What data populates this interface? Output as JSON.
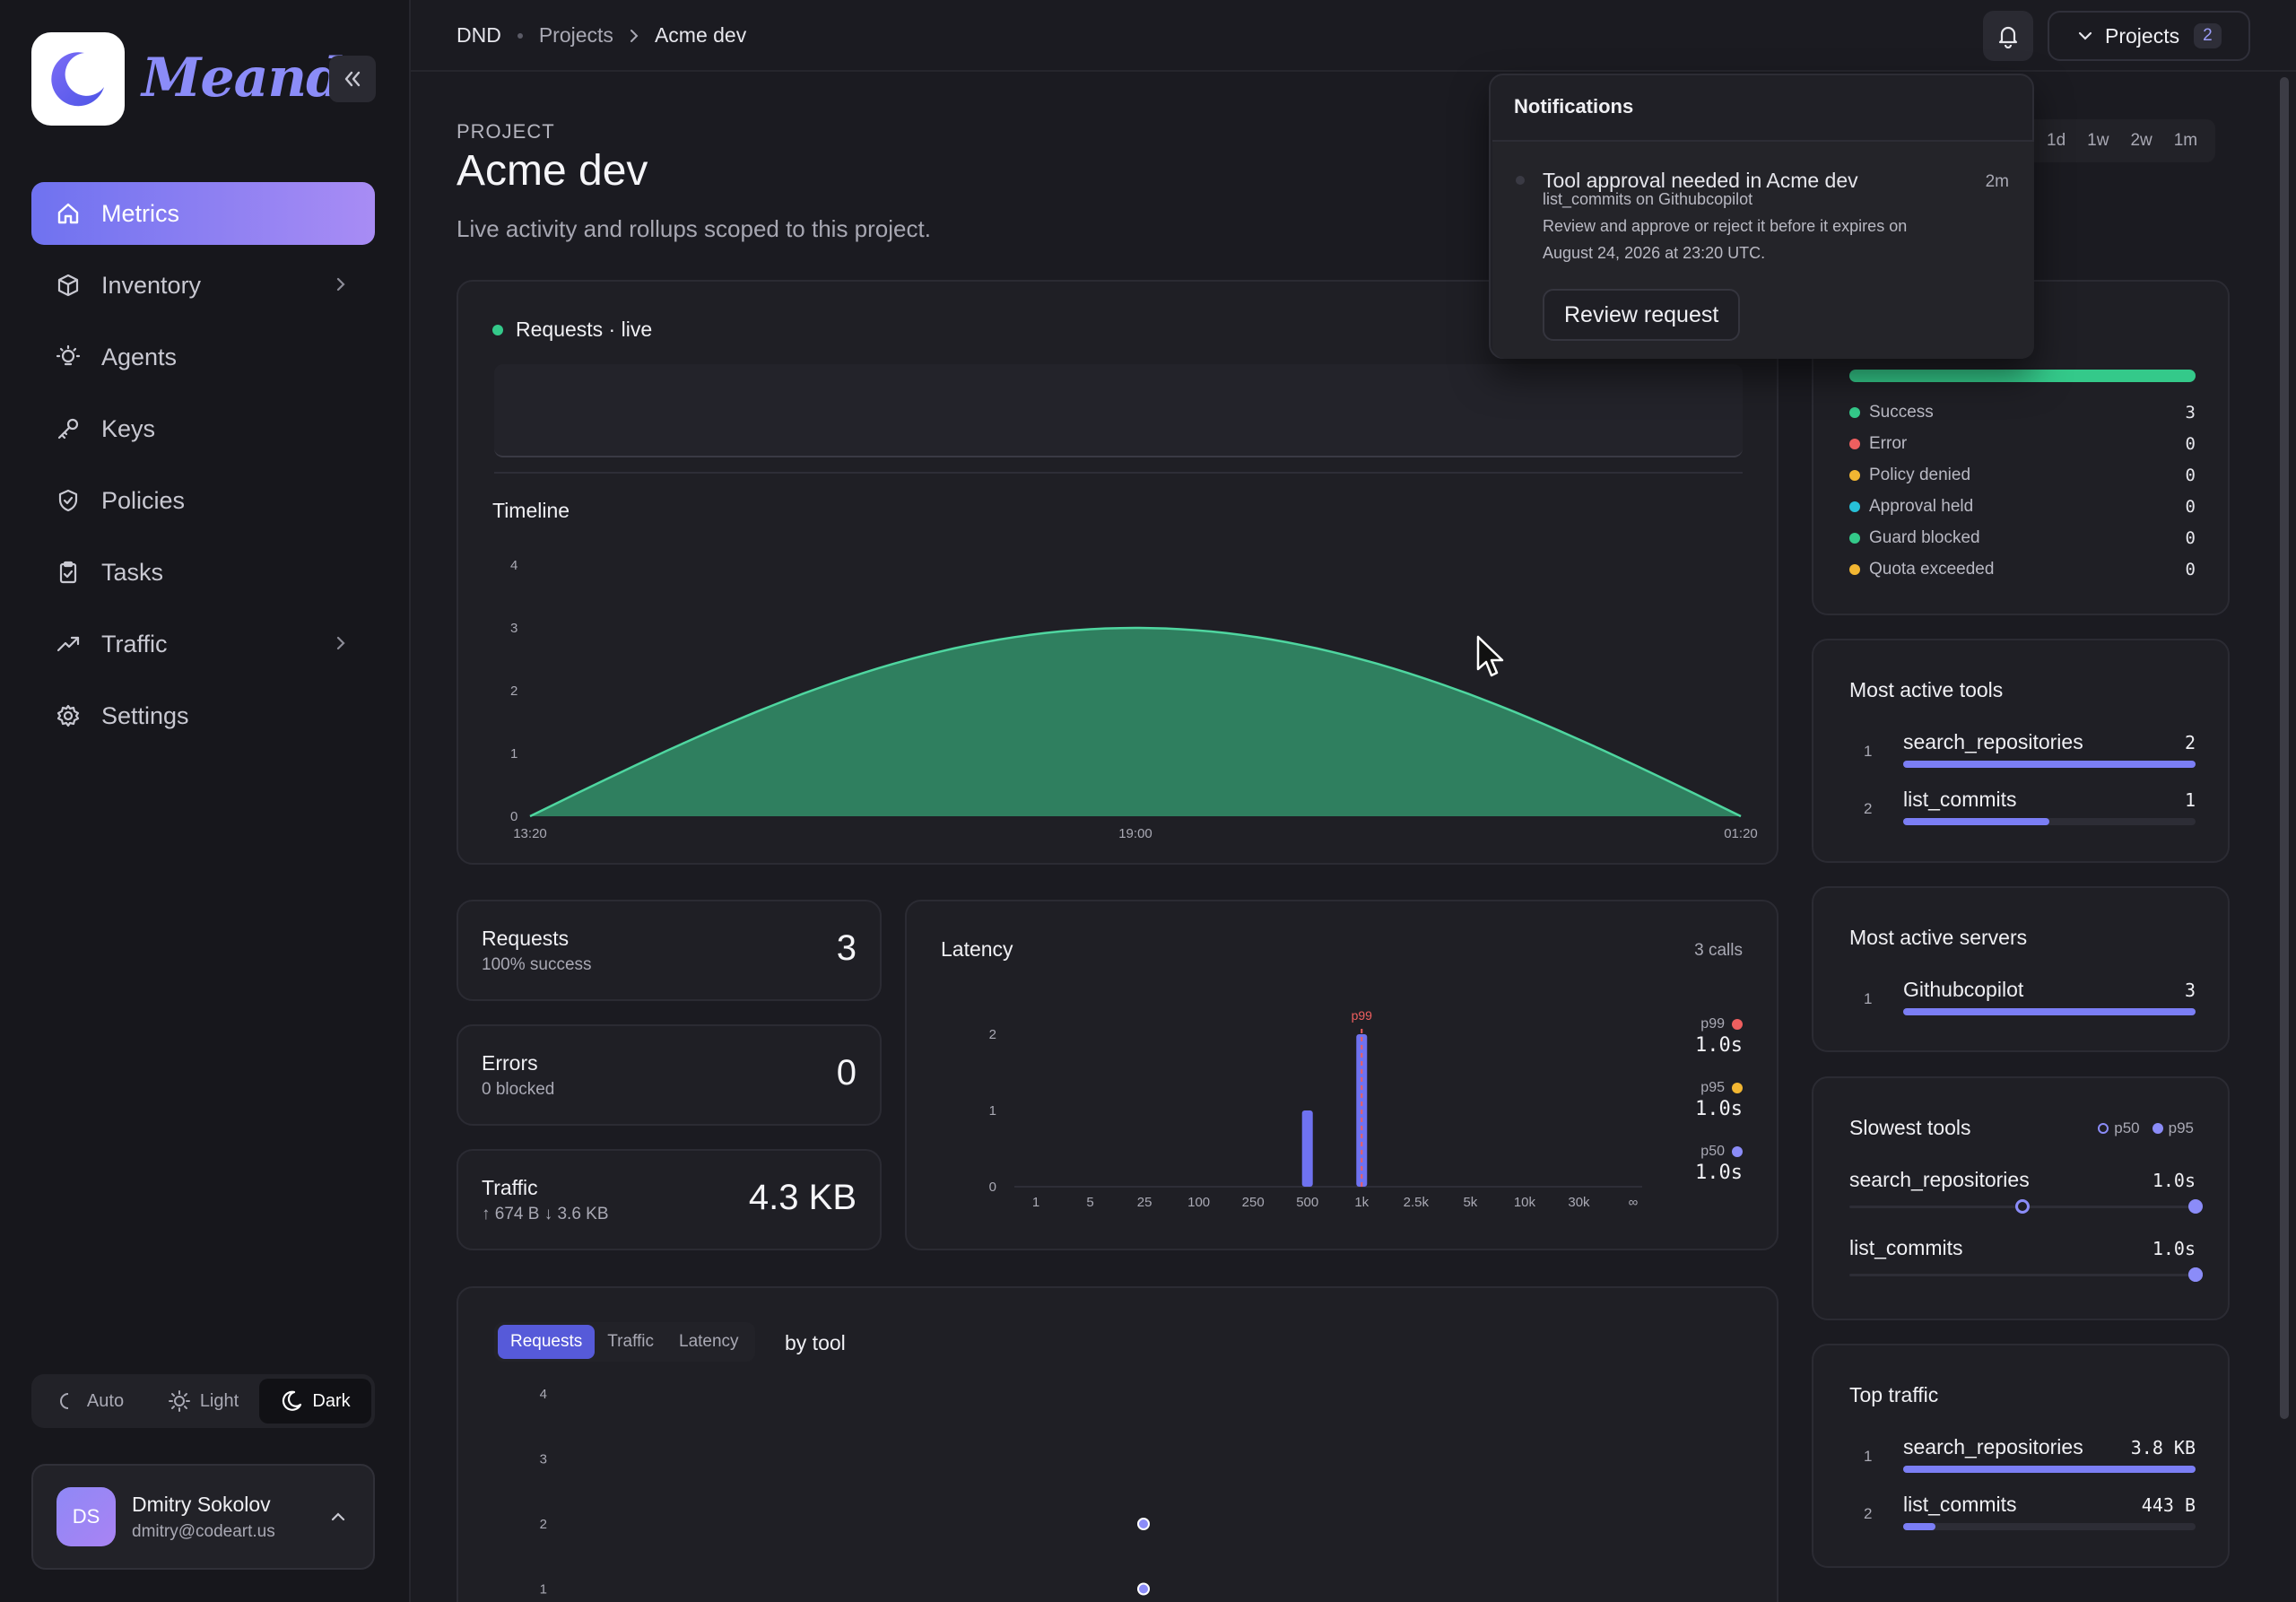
{
  "brand": "Meandr",
  "nav": [
    {
      "label": "Metrics"
    },
    {
      "label": "Inventory"
    },
    {
      "label": "Agents"
    },
    {
      "label": "Keys"
    },
    {
      "label": "Policies"
    },
    {
      "label": "Tasks"
    },
    {
      "label": "Traffic"
    },
    {
      "label": "Settings"
    }
  ],
  "theme": {
    "auto": "Auto",
    "light": "Light",
    "dark": "Dark",
    "selected": "Dark"
  },
  "user": {
    "initials": "DS",
    "name": "Dmitry Sokolov",
    "email": "dmitry@codeart.us"
  },
  "breadcrumb": {
    "root": "DND",
    "section": "Projects",
    "current": "Acme dev"
  },
  "projects_button": {
    "label": "Projects",
    "count": "2"
  },
  "page": {
    "eyebrow": "PROJECT",
    "title": "Acme dev",
    "subtitle": "Live activity and rollups scoped to this project."
  },
  "range_tabs": [
    "1d",
    "1w",
    "2w",
    "1m"
  ],
  "notifications": {
    "heading": "Notifications",
    "item": {
      "title": "Tool approval needed in Acme dev",
      "time": "2m",
      "line1": "list_commits on Githubcopilot",
      "line2": "Review and approve or reject it before it expires on",
      "line3": "August 24, 2026 at 23:20 UTC.",
      "action": "Review request"
    }
  },
  "live_card": {
    "title": "Requests · live"
  },
  "timeline": {
    "title": "Timeline",
    "chart_data": {
      "type": "area",
      "x": [
        "13:20",
        "19:00",
        "01:20"
      ],
      "y_ticks": [
        0,
        1,
        2,
        3,
        4
      ],
      "ylim": [
        0,
        4
      ],
      "series": [
        {
          "values": [
            0,
            3,
            0
          ]
        }
      ],
      "color": "#2f7f5f"
    }
  },
  "outcomes": {
    "rows": [
      {
        "label": "Success",
        "value": "3",
        "color": "#34c98a"
      },
      {
        "label": "Error",
        "value": "0",
        "color": "#ef5f5f"
      },
      {
        "label": "Policy denied",
        "value": "0",
        "color": "#f2b632"
      },
      {
        "label": "Approval held",
        "value": "0",
        "color": "#27c0d8"
      },
      {
        "label": "Guard blocked",
        "value": "0",
        "color": "#34c98a"
      },
      {
        "label": "Quota exceeded",
        "value": "0",
        "color": "#f2b632"
      }
    ],
    "success_fraction": 1.0
  },
  "most_active_tools": {
    "title": "Most active tools",
    "items": [
      {
        "rank": "1",
        "name": "search_repositories",
        "count": "2",
        "fraction": 1.0
      },
      {
        "rank": "2",
        "name": "list_commits",
        "count": "1",
        "fraction": 0.5
      }
    ]
  },
  "most_active_servers": {
    "title": "Most active servers",
    "items": [
      {
        "rank": "1",
        "name": "Githubcopilot",
        "count": "3",
        "fraction": 1.0
      }
    ]
  },
  "slowest_tools": {
    "title": "Slowest tools",
    "legend_p50": "p50",
    "legend_p95": "p95",
    "items": [
      {
        "name": "search_repositories",
        "value": "1.0s",
        "p50_fraction": 0.5,
        "p95_fraction": 1.0
      },
      {
        "name": "list_commits",
        "value": "1.0s",
        "p50_fraction": 1.0,
        "p95_fraction": 1.0
      }
    ]
  },
  "top_traffic": {
    "title": "Top traffic",
    "items": [
      {
        "rank": "1",
        "name": "search_repositories",
        "value": "3.8 KB",
        "fraction": 1.0
      },
      {
        "rank": "2",
        "name": "list_commits",
        "value": "443 B",
        "fraction": 0.11
      }
    ]
  },
  "stats": {
    "requests": {
      "label": "Requests",
      "sub": "100% success",
      "value": "3"
    },
    "errors": {
      "label": "Errors",
      "sub": "0 blocked",
      "value": "0"
    },
    "traffic": {
      "label": "Traffic",
      "sub": "↑ 674 B ↓ 3.6 KB",
      "value": "4.3 KB"
    }
  },
  "latency": {
    "title": "Latency",
    "calls": "3 calls",
    "marker": "p99",
    "percentiles": [
      {
        "label": "p99",
        "value": "1.0s",
        "color": "#ef5f5f"
      },
      {
        "label": "p95",
        "value": "1.0s",
        "color": "#f2b632"
      },
      {
        "label": "p50",
        "value": "1.0s",
        "color": "#8b8cf8"
      }
    ],
    "chart_data": {
      "type": "bar",
      "categories": [
        "1",
        "5",
        "25",
        "100",
        "250",
        "500",
        "1k",
        "2.5k",
        "5k",
        "10k",
        "30k",
        "∞"
      ],
      "y_ticks": [
        0,
        1,
        2
      ],
      "ylim": [
        0,
        2.2
      ],
      "bars": [
        {
          "category_index": 5,
          "value": 1
        },
        {
          "category_index": 6,
          "value": 2
        }
      ]
    }
  },
  "by_tool": {
    "tabs": [
      "Requests",
      "Traffic",
      "Latency"
    ],
    "selected": "Requests",
    "suffix": "by tool",
    "chart_data": {
      "type": "scatter",
      "y_ticks": [
        4,
        3,
        2,
        1
      ],
      "points": [
        {
          "y": 2
        },
        {
          "y": 1
        }
      ]
    }
  }
}
